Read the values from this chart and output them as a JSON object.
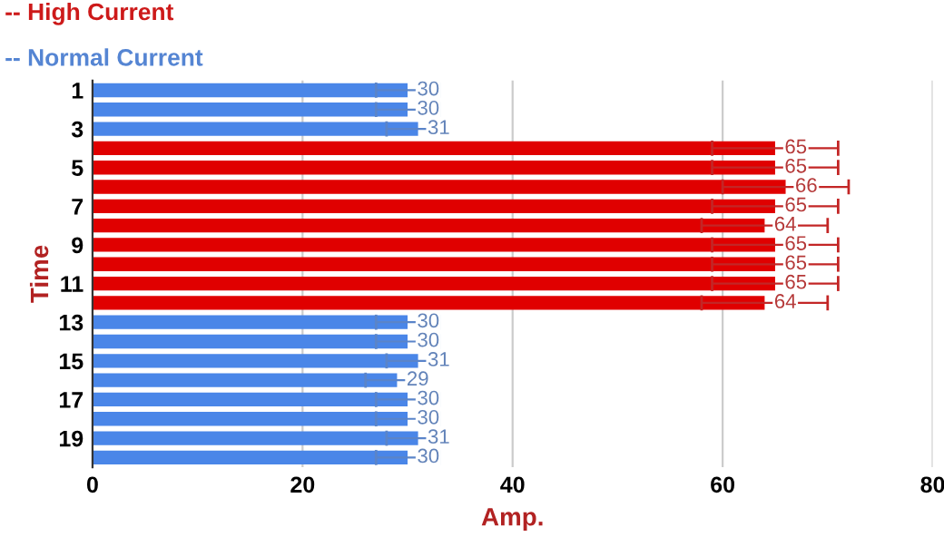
{
  "chart_data": {
    "type": "bar",
    "orientation": "horizontal",
    "stacked": true,
    "categories": [
      "1",
      null,
      "3",
      null,
      "5",
      null,
      "7",
      null,
      "9",
      null,
      "11",
      null,
      "13",
      null,
      "15",
      null,
      "17",
      null,
      "19",
      null
    ],
    "series": [
      {
        "name": "-- High Current",
        "color": "#e00000",
        "values": [
          null,
          null,
          null,
          65,
          65,
          66,
          65,
          64,
          65,
          65,
          65,
          64,
          null,
          null,
          null,
          null,
          null,
          null,
          null,
          null
        ],
        "errors": [
          null,
          null,
          null,
          6,
          6,
          6,
          6,
          6,
          6,
          6,
          6,
          6,
          null,
          null,
          null,
          null,
          null,
          null,
          null,
          null
        ]
      },
      {
        "name": "-- Normal Current",
        "color": "#4a86e8",
        "values": [
          30,
          30,
          31,
          null,
          null,
          null,
          null,
          null,
          null,
          null,
          null,
          null,
          30,
          30,
          31,
          29,
          30,
          30,
          31,
          30
        ],
        "errors": [
          3,
          3,
          3,
          null,
          null,
          null,
          null,
          null,
          null,
          null,
          null,
          null,
          3,
          3,
          3,
          3,
          3,
          3,
          3,
          3
        ]
      }
    ],
    "xlim": [
      0,
      80
    ],
    "xticks": [
      0,
      20,
      40,
      60,
      80
    ],
    "xlabel": "Amp.",
    "ylabel": "Time",
    "grid": "x",
    "legend": "top left",
    "data_labels": true
  }
}
